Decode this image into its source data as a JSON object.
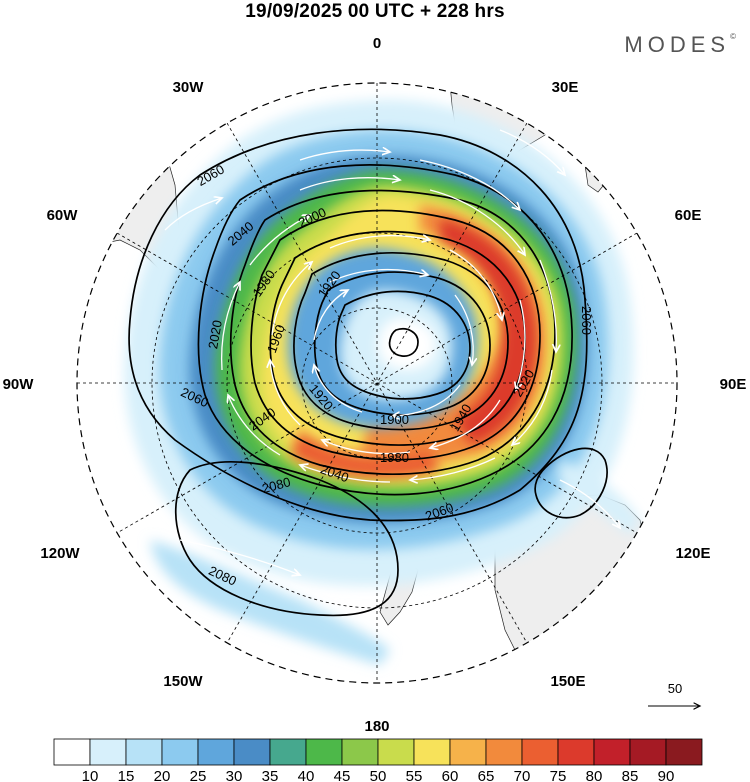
{
  "header": {
    "title": "19/09/2025  00 UTC  + 228 hrs",
    "brand": "MODES"
  },
  "map": {
    "projection": "polar-stereographic-south",
    "longitude_labels": [
      {
        "lon": "0",
        "text": "0"
      },
      {
        "lon": "30E",
        "text": "30E"
      },
      {
        "lon": "60E",
        "text": "60E"
      },
      {
        "lon": "90E",
        "text": "90E"
      },
      {
        "lon": "120E",
        "text": "120E"
      },
      {
        "lon": "150E",
        "text": "150E"
      },
      {
        "lon": "180",
        "text": "180"
      },
      {
        "lon": "150W",
        "text": "150W"
      },
      {
        "lon": "120W",
        "text": "120W"
      },
      {
        "lon": "90W",
        "text": "90W"
      },
      {
        "lon": "60W",
        "text": "60W"
      },
      {
        "lon": "30W",
        "text": "30W"
      }
    ],
    "contour_labels": [
      "2060",
      "2040",
      "2000",
      "1980",
      "1920",
      "2020",
      "1960",
      "1900",
      "1940",
      "1920",
      "2040",
      "1980",
      "2040",
      "2060",
      "2060",
      "2060",
      "2020",
      "2080",
      "2080"
    ],
    "reference_vector": {
      "value": "50"
    }
  },
  "colorbar": {
    "labels": [
      "10",
      "15",
      "20",
      "25",
      "30",
      "35",
      "40",
      "45",
      "50",
      "55",
      "60",
      "65",
      "70",
      "75",
      "80",
      "85",
      "90"
    ],
    "colors": [
      "#ffffff",
      "#d7f0fb",
      "#b7e2f7",
      "#8ccaef",
      "#5fa6dc",
      "#4a8cc6",
      "#46a88e",
      "#4db849",
      "#8cc84a",
      "#c9dc4c",
      "#f7e25a",
      "#f6b24a",
      "#f28a3c",
      "#eb5f31",
      "#dc3a2c",
      "#c2202a",
      "#a51a24",
      "#8a1a1f"
    ]
  }
}
